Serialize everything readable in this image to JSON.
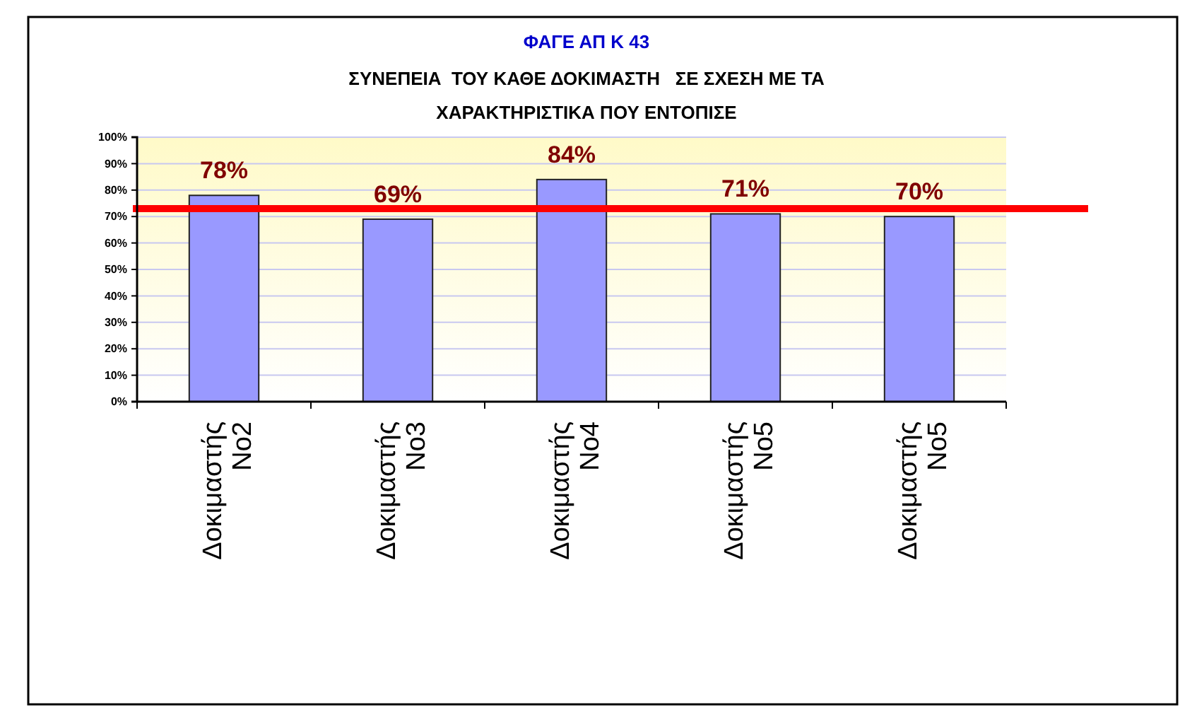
{
  "chart_data": {
    "type": "bar",
    "title": "ΦΑΓΕ ΑΠ Κ 43",
    "subtitle": "ΣΥΝΕΠΕΙΑ  ΤΟΥ ΚΑΘΕ ΔΟΚΙΜΑΣΤΗ   ΣΕ ΣΧΕΣΗ ΜΕ ΤΑ ΧΑΡΑΚΤΗΡΙΣΤΙΚΑ ΠΟΥ ΕΝΤΟΠΙΣΕ",
    "categories": [
      "Δοκιμαστής No2",
      "Δοκιμαστής No3",
      "Δοκιμαστής No4",
      "Δοκιμαστής No5",
      "Δοκιμαστής No5"
    ],
    "values": [
      78,
      69,
      84,
      71,
      70
    ],
    "value_labels": [
      "78%",
      "69%",
      "84%",
      "71%",
      "70%"
    ],
    "color": "#9999ff",
    "ylim": [
      0,
      100
    ],
    "yticks": [
      {
        "value": 0,
        "label": "0%"
      },
      {
        "value": 10,
        "label": "10%"
      },
      {
        "value": 20,
        "label": "20%"
      },
      {
        "value": 30,
        "label": "30%"
      },
      {
        "value": 40,
        "label": "40%"
      },
      {
        "value": 50,
        "label": "50%"
      },
      {
        "value": 60,
        "label": "60%"
      },
      {
        "value": 70,
        "label": "70%"
      },
      {
        "value": 80,
        "label": "80%"
      },
      {
        "value": 90,
        "label": "90%"
      },
      {
        "value": 100,
        "label": "100%"
      }
    ],
    "grid": "y",
    "ref_lines": [
      {
        "axis": "y",
        "value": 73,
        "color": "#ff0000"
      }
    ]
  }
}
